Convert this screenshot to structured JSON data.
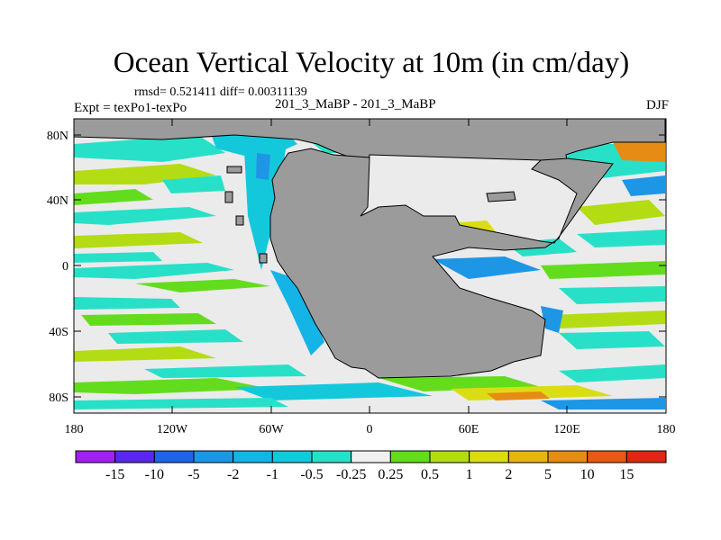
{
  "title": "Ocean Vertical Velocity at 10m (in cm/day)",
  "stats": "rmsd= 0.521411 diff= 0.00311139",
  "expt": "Expt = texPo1-texPo",
  "case": "201_3_MaBP - 201_3_MaBP",
  "season": "DJF",
  "y_ticks": [
    "80N",
    "40N",
    "0",
    "40S",
    "80S"
  ],
  "x_ticks": [
    "180",
    "120W",
    "60W",
    "0",
    "60E",
    "120E",
    "180"
  ],
  "legend": {
    "labels": [
      "-15",
      "-10",
      "-5",
      "-2",
      "-1",
      "-0.5",
      "-0.25",
      "0.25",
      "0.5",
      "1",
      "2",
      "5",
      "10",
      "15"
    ],
    "colors": [
      "#a020f0",
      "#5a28e8",
      "#1e64e6",
      "#1e96e6",
      "#14b4e6",
      "#14c8dc",
      "#28e0c8",
      "#f0f0f0",
      "#64dc1e",
      "#b4dc14",
      "#dcdc14",
      "#e6b414",
      "#e68c14",
      "#e65a14",
      "#dc2814"
    ]
  },
  "colors": {
    "land": "#9b9b9b",
    "ocean_neutral": "#ebebeb"
  }
}
